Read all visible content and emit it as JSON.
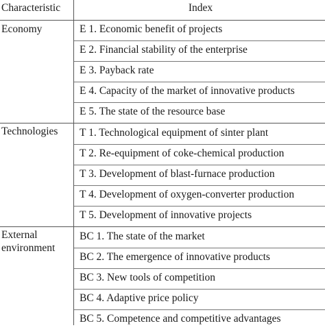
{
  "header": {
    "characteristic": "Characteristic",
    "index": "Index"
  },
  "groups": [
    {
      "name": "Economy",
      "items": [
        "E 1. Economic benefit of projects",
        "E 2. Financial stability of the enterprise",
        "E 3. Payback rate",
        "E 4. Capacity of the market of innovative products",
        "E 5. The state of the resource base"
      ]
    },
    {
      "name": "Technologies",
      "items": [
        "T 1. Technological equipment of sinter plant",
        "T 2. Re-equipment of coke-chemical production",
        "T 3. Development of blast-furnace production",
        "T 4. Development of oxygen-converter production",
        "T 5. Development of innovative projects"
      ]
    },
    {
      "name": "External\nenvironment",
      "items": [
        "BC 1. The state of the market",
        "BC 2. The emergence of innovative products",
        "BC 3. New tools of competition",
        "BC 4. Adaptive price policy",
        "BC 5. Competence and competitive advantages"
      ]
    }
  ]
}
